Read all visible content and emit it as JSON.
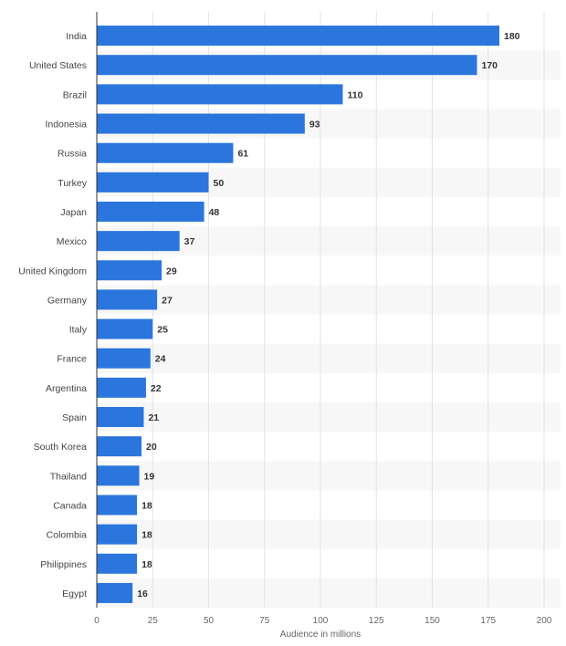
{
  "chart_data": {
    "type": "bar",
    "orientation": "horizontal",
    "categories": [
      "India",
      "United States",
      "Brazil",
      "Indonesia",
      "Russia",
      "Turkey",
      "Japan",
      "Mexico",
      "United Kingdom",
      "Germany",
      "Italy",
      "France",
      "Argentina",
      "Spain",
      "South Korea",
      "Thailand",
      "Canada",
      "Colombia",
      "Philippines",
      "Egypt"
    ],
    "values": [
      180,
      170,
      110,
      93,
      61,
      50,
      48,
      37,
      29,
      27,
      25,
      24,
      22,
      21,
      20,
      19,
      18,
      18,
      18,
      16
    ],
    "xlabel": "Audience in millions",
    "xlim": [
      0,
      200
    ],
    "xticks": [
      0,
      25,
      50,
      75,
      100,
      125,
      150,
      175,
      200
    ],
    "grid": true,
    "bar_color": "#2a76dd",
    "stripe_color": "#f7f7f7"
  }
}
